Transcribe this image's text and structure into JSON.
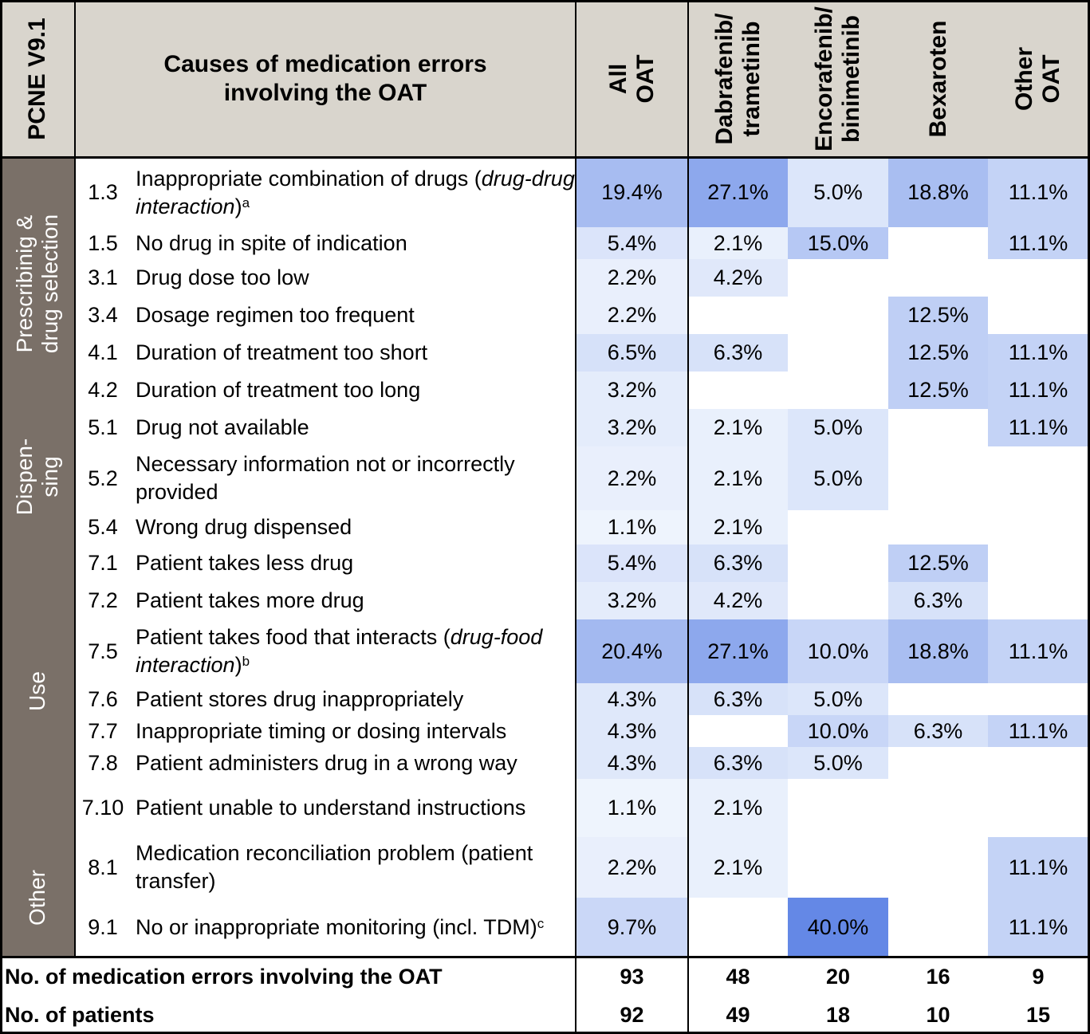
{
  "header": {
    "pcne": "PCNE V9.1",
    "causes_title": "Causes of medication errors involving the OAT",
    "columns": [
      "All OAT",
      "Dabrafenib/ trametinib",
      "Encorafenib/ binimetinib",
      "Bexaroten",
      "Other OAT"
    ]
  },
  "categories": [
    "Prescribinig & drug selection",
    "Dispen-sing",
    "Use",
    "Other"
  ],
  "rows": [
    {
      "code": "1.3",
      "desc": "Inappropriate combination of drugs (",
      "desc_italic": "drug-drug interaction",
      "desc_after": ")",
      "sup": "a",
      "values": [
        "19.4%",
        "27.1%",
        "5.0%",
        "18.8%",
        "11.1%"
      ]
    },
    {
      "code": "1.5",
      "desc": "No drug in spite of indication",
      "values": [
        "5.4%",
        "2.1%",
        "15.0%",
        "",
        "11.1%"
      ]
    },
    {
      "code": "3.1",
      "desc": "Drug dose too low",
      "values": [
        "2.2%",
        "4.2%",
        "",
        "",
        ""
      ]
    },
    {
      "code": "3.4",
      "desc": "Dosage regimen too frequent",
      "values": [
        "2.2%",
        "",
        "",
        "12.5%",
        ""
      ]
    },
    {
      "code": "4.1",
      "desc": "Duration of treatment too short",
      "values": [
        "6.5%",
        "6.3%",
        "",
        "12.5%",
        "11.1%"
      ]
    },
    {
      "code": "4.2",
      "desc": "Duration of treatment too long",
      "values": [
        "3.2%",
        "",
        "",
        "12.5%",
        "11.1%"
      ]
    },
    {
      "code": "5.1",
      "desc": "Drug not available",
      "values": [
        "3.2%",
        "2.1%",
        "5.0%",
        "",
        "11.1%"
      ]
    },
    {
      "code": "5.2",
      "desc": "Necessary information not or incorrectly provided",
      "values": [
        "2.2%",
        "2.1%",
        "5.0%",
        "",
        ""
      ]
    },
    {
      "code": "5.4",
      "desc": "Wrong drug dispensed",
      "values": [
        "1.1%",
        "2.1%",
        "",
        "",
        ""
      ]
    },
    {
      "code": "7.1",
      "desc": "Patient takes less drug",
      "values": [
        "5.4%",
        "6.3%",
        "",
        "12.5%",
        ""
      ]
    },
    {
      "code": "7.2",
      "desc": "Patient takes more drug",
      "values": [
        "3.2%",
        "4.2%",
        "",
        "6.3%",
        ""
      ]
    },
    {
      "code": "7.5",
      "desc": "Patient takes food that interacts (",
      "desc_italic": "drug-food interaction",
      "desc_after": ")",
      "sup": "b",
      "values": [
        "20.4%",
        "27.1%",
        "10.0%",
        "18.8%",
        "11.1%"
      ]
    },
    {
      "code": "7.6",
      "desc": "Patient stores drug inappropriately",
      "values": [
        "4.3%",
        "6.3%",
        "5.0%",
        "",
        ""
      ]
    },
    {
      "code": "7.7",
      "desc": "Inappropriate timing or dosing intervals",
      "values": [
        "4.3%",
        "",
        "10.0%",
        "6.3%",
        "11.1%"
      ]
    },
    {
      "code": "7.8",
      "desc": "Patient administers drug in a wrong way",
      "values": [
        "4.3%",
        "6.3%",
        "5.0%",
        "",
        ""
      ]
    },
    {
      "code": "7.10",
      "desc": "Patient unable to understand instructions",
      "values": [
        "1.1%",
        "2.1%",
        "",
        "",
        ""
      ]
    },
    {
      "code": "8.1",
      "desc": "Medication reconciliation problem (patient transfer)",
      "values": [
        "2.2%",
        "2.1%",
        "",
        "",
        "11.1%"
      ]
    },
    {
      "code": "9.1",
      "desc": "No or inappropriate monitoring (incl. TDM)",
      "sup": "c",
      "values": [
        "9.7%",
        "",
        "40.0%",
        "",
        "11.1%"
      ]
    }
  ],
  "totals": [
    {
      "label": "No. of medication errors involving the OAT",
      "values": [
        "93",
        "48",
        "20",
        "16",
        "9"
      ]
    },
    {
      "label": "No. of patients",
      "values": [
        "92",
        "49",
        "18",
        "10",
        "15"
      ]
    }
  ],
  "colors": {
    "header_bg": "#d9d5cd",
    "category_bg": "#7a7068",
    "heat_low": "#f5f8fd",
    "heat_high": "#6488e6"
  }
}
